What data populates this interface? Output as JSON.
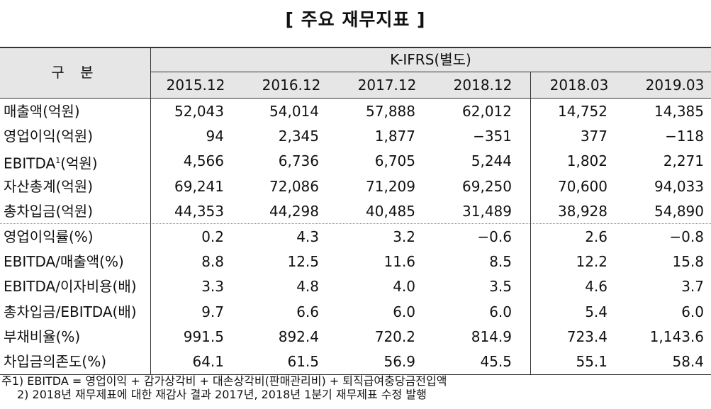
{
  "title": "[ 주요 재무지표 ]",
  "table": {
    "corner": "구 분",
    "group_header": "K-IFRS(별도)",
    "columns": [
      "2015.12",
      "2016.12",
      "2017.12",
      "2018.12",
      "2018.03",
      "2019.03"
    ],
    "rows": [
      {
        "label": "매출액(억원)",
        "values": [
          "52,043",
          "54,014",
          "57,888",
          "62,012",
          "14,752",
          "14,385"
        ]
      },
      {
        "label": "영업이익(억원)",
        "values": [
          "94",
          "2,345",
          "1,877",
          "−351",
          "377",
          "−118"
        ]
      },
      {
        "label": "EBITDA",
        "sup": "1",
        "suffix": "(억원)",
        "values": [
          "4,566",
          "6,736",
          "6,705",
          "5,244",
          "1,802",
          "2,271"
        ]
      },
      {
        "label": "자산총계(억원)",
        "values": [
          "69,241",
          "72,086",
          "71,209",
          "69,250",
          "70,600",
          "94,033"
        ]
      },
      {
        "label": "총차입금(억원)",
        "values": [
          "44,353",
          "44,298",
          "40,485",
          "31,489",
          "38,928",
          "54,890"
        ]
      },
      {
        "label": "영업이익률(%)",
        "values": [
          "0.2",
          "4.3",
          "3.2",
          "−0.6",
          "2.6",
          "−0.8"
        ]
      },
      {
        "label": "EBITDA/매출액(%)",
        "values": [
          "8.8",
          "12.5",
          "11.6",
          "8.5",
          "12.2",
          "15.8"
        ]
      },
      {
        "label": "EBITDA/이자비용(배)",
        "values": [
          "3.3",
          "4.8",
          "4.0",
          "3.5",
          "4.6",
          "3.7"
        ]
      },
      {
        "label": "총차입금/EBITDA(배)",
        "values": [
          "9.7",
          "6.6",
          "6.0",
          "6.0",
          "5.4",
          "6.0"
        ]
      },
      {
        "label": "부채비율(%)",
        "values": [
          "991.5",
          "892.4",
          "720.2",
          "814.9",
          "723.4",
          "1,143.6"
        ]
      },
      {
        "label": "차입금의존도(%)",
        "values": [
          "64.1",
          "61.5",
          "56.9",
          "45.5",
          "55.1",
          "58.4"
        ]
      }
    ]
  },
  "notes": [
    "주1) EBITDA = 영업이익 + 감가상각비 + 대손상각비(판매관리비) + 퇴직급여충당금전입액",
    "2) 2018년 재무제표에 대한 재감사 결과 2017년, 2018년 1분기 재무제표 수정 발행"
  ]
}
